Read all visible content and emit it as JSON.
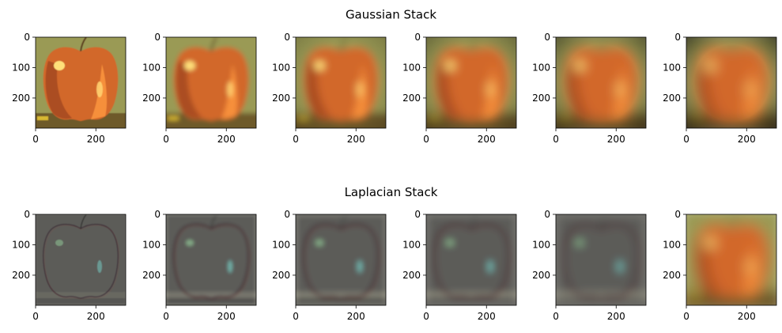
{
  "chart_data": {
    "type": "image-grid",
    "rows": [
      {
        "title": "Gaussian Stack",
        "panels": [
          {
            "blur": 0.6,
            "detail": false,
            "darkness": 0.0
          },
          {
            "blur": 3.0,
            "detail": false,
            "darkness": 0.0
          },
          {
            "blur": 5.0,
            "detail": false,
            "darkness": 0.03
          },
          {
            "blur": 6.5,
            "detail": false,
            "darkness": 0.05
          },
          {
            "blur": 7.5,
            "detail": false,
            "darkness": 0.07
          },
          {
            "blur": 8.5,
            "detail": false,
            "darkness": 0.09
          }
        ]
      },
      {
        "title": "Laplacian Stack",
        "panels": [
          {
            "blur": 0.6,
            "detail": true,
            "strength": 0.25
          },
          {
            "blur": 2.0,
            "detail": true,
            "strength": 0.55
          },
          {
            "blur": 3.5,
            "detail": true,
            "strength": 0.75
          },
          {
            "blur": 4.5,
            "detail": true,
            "strength": 0.85
          },
          {
            "blur": 5.5,
            "detail": true,
            "strength": 0.9
          },
          {
            "blur": 8.5,
            "detail": false,
            "darkness": 0.0
          }
        ]
      }
    ],
    "x_axis": {
      "ticks": [
        0,
        200
      ],
      "range": [
        0,
        299
      ]
    },
    "y_axis": {
      "ticks": [
        0,
        100,
        200
      ],
      "range": [
        0,
        299
      ]
    },
    "colors": {
      "apple": "#d2672a",
      "apple_dark": "#8a3b1c",
      "highlight": "#ffe07a",
      "background": "#9a9a55",
      "table": "#6e5a2c",
      "laplacian_gray": "#5c5c58"
    }
  }
}
